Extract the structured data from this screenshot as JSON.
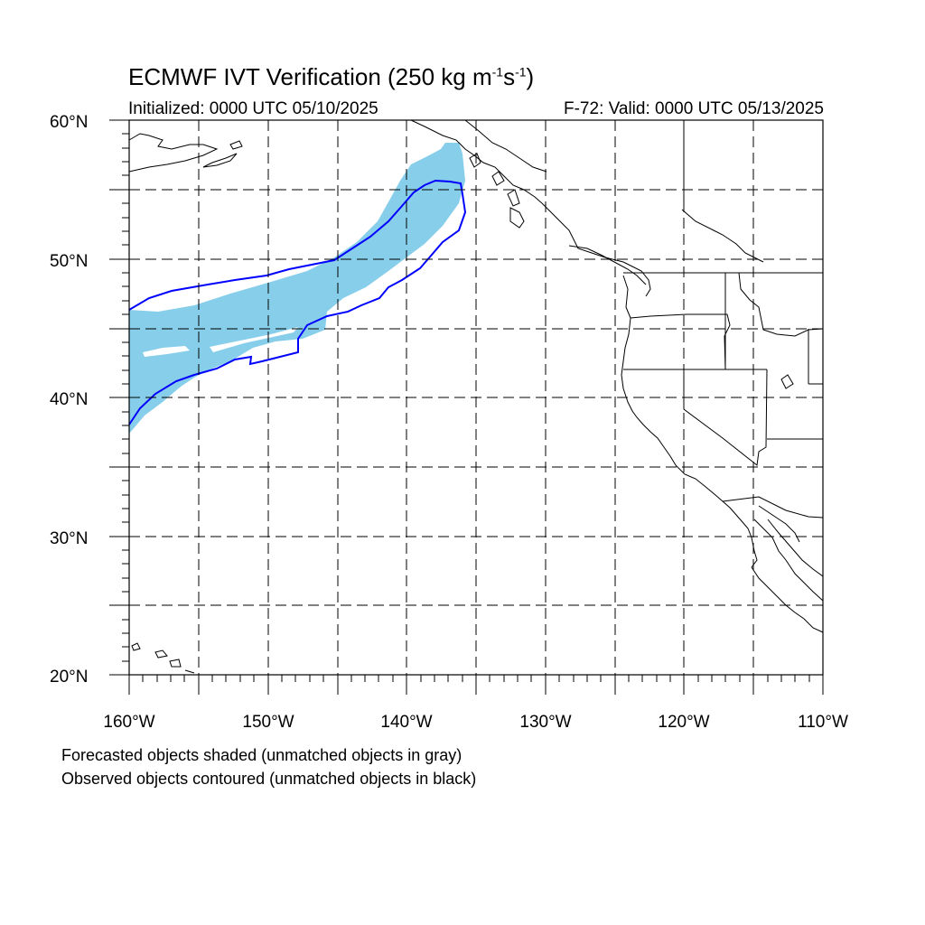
{
  "title": {
    "main": "ECMWF IVT Verification (250 kg m",
    "sup1": "-1",
    "mid": "s",
    "sup2": "-1",
    "end": ")"
  },
  "subtitle_left": "Initialized: 0000 UTC 05/10/2025",
  "subtitle_right": "F-72: Valid: 0000 UTC 05/13/2025",
  "lat_labels": [
    "60°N",
    "50°N",
    "40°N",
    "30°N",
    "20°N"
  ],
  "lon_labels": [
    "160°W",
    "150°W",
    "140°W",
    "130°W",
    "120°W",
    "110°W"
  ],
  "notes": [
    "Forecasted objects shaded (unmatched objects in gray)",
    "Observed objects contoured (unmatched objects in black)"
  ],
  "colors": {
    "forecast_fill": "#87ceeb",
    "observed_contour": "#0000ff",
    "coastline": "#000000",
    "grid": "#000000"
  },
  "map_extent": {
    "lon": [
      -160,
      -110
    ],
    "lat": [
      20,
      60
    ]
  }
}
